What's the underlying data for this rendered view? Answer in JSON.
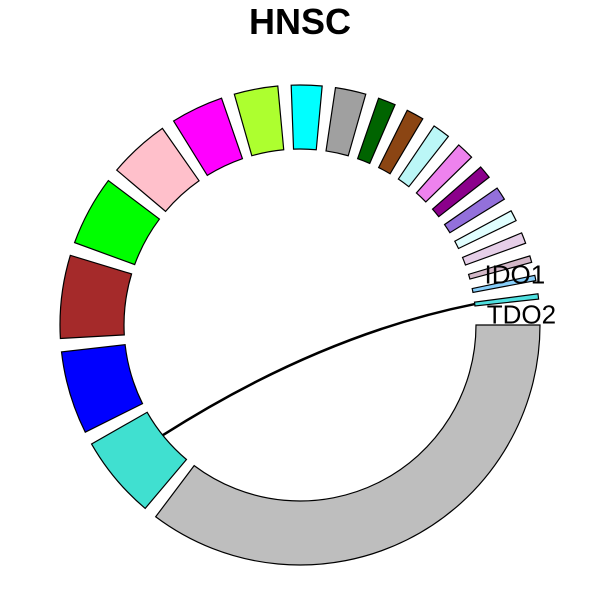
{
  "title": "HNSC",
  "chart_data": {
    "type": "chord",
    "sectors": [
      {
        "name": "",
        "color": "#BEBEBE",
        "size": 120.0
      },
      {
        "name": "",
        "color": "#40E0D0",
        "size": 19.0
      },
      {
        "name": "",
        "color": "#0000FF",
        "size": 19.0
      },
      {
        "name": "",
        "color": "#A52A2A",
        "size": 19.0
      },
      {
        "name": "",
        "color": "#00FF00",
        "size": 16.0
      },
      {
        "name": "",
        "color": "#FFC0CB",
        "size": 14.0
      },
      {
        "name": "",
        "color": "#FF00FF",
        "size": 12.0
      },
      {
        "name": "",
        "color": "#ADFF2F",
        "size": 10.0
      },
      {
        "name": "",
        "color": "#00FFFF",
        "size": 7.0
      },
      {
        "name": "",
        "color": "#A0A0A0",
        "size": 7.0
      },
      {
        "name": "",
        "color": "#006400",
        "size": 4.0
      },
      {
        "name": "",
        "color": "#8B4513",
        "size": 4.0
      },
      {
        "name": "",
        "color": "#BBF7F7",
        "size": 4.0
      },
      {
        "name": "",
        "color": "#EE82EE",
        "size": 4.0
      },
      {
        "name": "",
        "color": "#8B008B",
        "size": 3.0
      },
      {
        "name": "",
        "color": "#9370DB",
        "size": 3.0
      },
      {
        "name": "",
        "color": "#E0FFFF",
        "size": 2.5
      },
      {
        "name": "",
        "color": "#E6CFE8",
        "size": 2.5
      },
      {
        "name": "",
        "color": "#D3B8C8",
        "size": 1.5
      },
      {
        "name": "",
        "color": "#87CEFA",
        "size": 1.2
      },
      {
        "name": "",
        "color": "#4FE0E0",
        "size": 1.2
      }
    ],
    "genes": [
      {
        "label": "IDO1",
        "sector": 19
      },
      {
        "label": "TDO2",
        "sector": 20
      }
    ],
    "links": [
      {
        "from_sector": 1,
        "to_sector": 20,
        "color": "#000000"
      }
    ]
  }
}
